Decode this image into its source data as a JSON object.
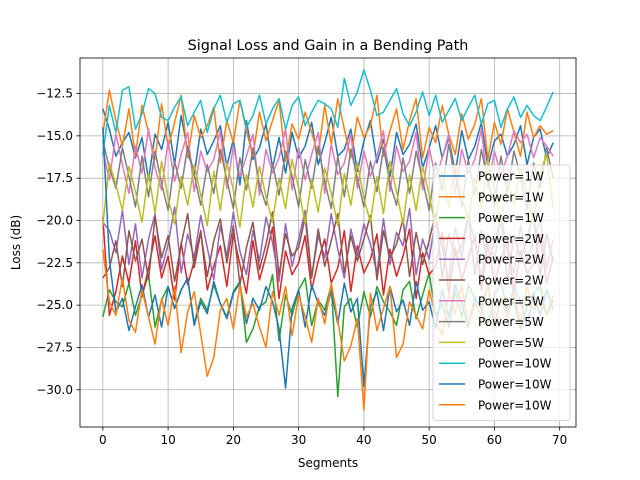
{
  "chart_data": {
    "type": "line",
    "title": "Signal Loss and Gain in a Bending Path",
    "xlabel": "Segments",
    "ylabel": "Loss (dB)",
    "xlim": [
      -3.5,
      72.5
    ],
    "ylim": [
      -32.2,
      -10.4
    ],
    "xticks": [
      0,
      10,
      20,
      30,
      40,
      50,
      60,
      70
    ],
    "yticks": [
      -30.0,
      -27.5,
      -25.0,
      -22.5,
      -20.0,
      -17.5,
      -15.0,
      -12.5
    ],
    "ytick_labels": [
      "−30.0",
      "−27.5",
      "−25.0",
      "−22.5",
      "−20.0",
      "−17.5",
      "−15.0",
      "−12.5"
    ],
    "grid": true,
    "legend_position": "center-right",
    "x": [
      0,
      1,
      2,
      3,
      4,
      5,
      6,
      7,
      8,
      9,
      10,
      11,
      12,
      13,
      14,
      15,
      16,
      17,
      18,
      19,
      20,
      21,
      22,
      23,
      24,
      25,
      26,
      27,
      28,
      29,
      30,
      31,
      32,
      33,
      34,
      35,
      36,
      37,
      38,
      39,
      40,
      41,
      42,
      43,
      44,
      45,
      46,
      47,
      48,
      49,
      50,
      51,
      52,
      53,
      54,
      55,
      56,
      57,
      58,
      59,
      60,
      61,
      62,
      63,
      64,
      65,
      66,
      67,
      68,
      69
    ],
    "series": [
      {
        "name": "Power=1W",
        "color": "#1f77b4",
        "values": [
          -13.4,
          -14.6,
          -16.2,
          -15.4,
          -14.8,
          -16.3,
          -15.1,
          -17.6,
          -14.9,
          -15.8,
          -14.2,
          -16.7,
          -13.8,
          -15.9,
          -17.3,
          -14.6,
          -16.1,
          -15.3,
          -14.4,
          -16.8,
          -15.2,
          -17.9,
          -14.1,
          -16.4,
          -15.7,
          -14.3,
          -16.9,
          -15.1,
          -17.2,
          -14.8,
          -16.3,
          -15.6,
          -14.2,
          -16.7,
          -15.4,
          -13.9,
          -16.2,
          -15.8,
          -14.6,
          -17.1,
          -15.3,
          -14.1,
          -16.6,
          -15.2,
          -17.4,
          -14.8,
          -16.1,
          -15.5,
          -14.3,
          -16.9,
          -15.7,
          -14.4,
          -16.3,
          -15.1,
          -17.2,
          -14.7,
          -16.4,
          -15.6,
          -14.2,
          -16.8,
          -15.3,
          -14.9,
          -16.2,
          -15.5,
          -14.4,
          -16.7,
          -15.1,
          -14.6,
          -16.3,
          -15.4
        ]
      },
      {
        "name": "Power=1W",
        "color": "#ff7f0e",
        "values": [
          -14.9,
          -12.3,
          -14.1,
          -15.6,
          -13.4,
          -16.2,
          -13.2,
          -14.8,
          -16.4,
          -13.1,
          -15.7,
          -14.2,
          -12.6,
          -16.3,
          -13.8,
          -15.1,
          -14.4,
          -13.3,
          -16.6,
          -14.1,
          -15.4,
          -12.9,
          -14.7,
          -16.2,
          -13.6,
          -15.3,
          -14.1,
          -12.9,
          -16.5,
          -14.3,
          -15.2,
          -13.6,
          -14.8,
          -16.1,
          -13.2,
          -15.5,
          -12.8,
          -14.6,
          -16.3,
          -13.9,
          -15.1,
          -14.4,
          -12.6,
          -16.2,
          -14.7,
          -13.4,
          -15.8,
          -14.1,
          -12.8,
          -16.3,
          -14.5,
          -15.4,
          -13.2,
          -14.9,
          -16.1,
          -13.7,
          -15.2,
          -14.3,
          -12.8,
          -16.4,
          -14.2,
          -15.5,
          -13.4,
          -14.8,
          -16.2,
          -13.6,
          -15.1,
          -14.4,
          -14.9,
          -14.7
        ]
      },
      {
        "name": "Power=1W",
        "color": "#2ca02c",
        "values": [
          -25.7,
          -24.1,
          -24.8,
          -25.1,
          -23.7,
          -25.6,
          -24.4,
          -23.2,
          -26.3,
          -24.7,
          -23.9,
          -25.2,
          -24.1,
          -23.4,
          -26.1,
          -24.6,
          -25.3,
          -23.8,
          -24.9,
          -25.7,
          -24.2,
          -23.6,
          -27.2,
          -26.4,
          -25.1,
          -24.8,
          -23.2,
          -27.1,
          -24.4,
          -25.6,
          -24.1,
          -23.4,
          -26.2,
          -24.7,
          -25.3,
          -23.8,
          -30.4,
          -25.1,
          -24.6,
          -26.3,
          -24.2,
          -25.7,
          -23.9,
          -24.8,
          -25.4,
          -26.2,
          -24.1,
          -23.6,
          -25.8,
          -24.4,
          -23.1,
          -25.6,
          -24.9,
          -26.3,
          -24.2,
          -25.7,
          -23.8,
          -24.6,
          -25.3,
          -26.1,
          -24.4,
          -23.7,
          -25.2,
          -24.8,
          -26.4,
          -25.1,
          -24.3,
          -23.9,
          -25.6,
          -24.7
        ]
      },
      {
        "name": "Power=2W",
        "color": "#d62728",
        "values": [
          -19.8,
          -25.6,
          -24.2,
          -22.1,
          -23.7,
          -21.2,
          -24.5,
          -22.8,
          -20.9,
          -23.4,
          -22.1,
          -24.7,
          -21.3,
          -23.8,
          -22.4,
          -20.6,
          -24.1,
          -22.7,
          -21.5,
          -23.9,
          -20.8,
          -22.6,
          -24.3,
          -21.2,
          -23.5,
          -22.1,
          -20.4,
          -24.6,
          -21.8,
          -23.2,
          -22.5,
          -20.9,
          -24.1,
          -22.4,
          -21.1,
          -23.7,
          -22.8,
          -20.6,
          -24.2,
          -21.5,
          -23.1,
          -22.3,
          -20.8,
          -24.4,
          -21.7,
          -23.3,
          -22.1,
          -20.5,
          -24.6,
          -21.9,
          -23.2,
          -22.7,
          -20.7,
          -24.3,
          -21.6,
          -23.5,
          -22.2,
          -20.9,
          -24.1,
          -21.4,
          -23.6,
          -22.3,
          -21.1,
          -24.2,
          -21.8,
          -23.1,
          -22.6,
          -20.8,
          -23.7,
          -22.1
        ]
      },
      {
        "name": "Power=2W",
        "color": "#9467bd",
        "values": [
          -20.1,
          -20.6,
          -21.9,
          -19.4,
          -22.6,
          -20.2,
          -23.4,
          -21.1,
          -19.6,
          -22.9,
          -21.4,
          -19.2,
          -23.1,
          -20.8,
          -22.2,
          -19.7,
          -21.6,
          -23.5,
          -20.3,
          -22.1,
          -19.5,
          -21.8,
          -23.2,
          -20.6,
          -22.4,
          -19.8,
          -21.3,
          -23.6,
          -20.2,
          -22.7,
          -21.1,
          -19.4,
          -23.3,
          -20.9,
          -22.2,
          -19.6,
          -21.7,
          -23.4,
          -20.5,
          -22.1,
          -20.2,
          -21.4,
          -23.1,
          -19.9,
          -22.6,
          -20.7,
          -21.5,
          -19.3,
          -23.2,
          -21.1,
          -22.3,
          -19.8,
          -21.6,
          -23.5,
          -20.4,
          -22.2,
          -19.7,
          -21.3,
          -23.4,
          -20.8,
          -22.5,
          -19.6,
          -21.9,
          -23.1,
          -20.3,
          -22.4,
          -21.2,
          -19.9,
          -22.8,
          -21.1
        ]
      },
      {
        "name": "Power=2W",
        "color": "#8c564b",
        "values": [
          -23.4,
          -22.8,
          -21.2,
          -23.9,
          -20.6,
          -22.4,
          -21.1,
          -23.5,
          -19.8,
          -22.2,
          -20.9,
          -23.6,
          -21.4,
          -19.6,
          -22.8,
          -20.7,
          -23.3,
          -21.2,
          -19.9,
          -22.5,
          -20.3,
          -23.8,
          -21.6,
          -20.1,
          -22.9,
          -21.4,
          -19.5,
          -23.2,
          -20.8,
          -22.1,
          -21.6,
          -19.8,
          -23.4,
          -20.5,
          -22.7,
          -21.2,
          -19.6,
          -23.1,
          -20.9,
          -22.4,
          -21.1,
          -19.7,
          -23.5,
          -20.6,
          -22.2,
          -21.4,
          -19.9,
          -23.3,
          -20.7,
          -22.6,
          -21.2,
          -19.5,
          -23.4,
          -20.8,
          -22.1,
          -21.5,
          -19.7,
          -23.2,
          -20.6,
          -22.5,
          -21.3,
          -19.8,
          -23.6,
          -20.9,
          -22.3,
          -21.1,
          -19.6,
          -23.3,
          -20.8,
          -22.4
        ]
      },
      {
        "name": "Power=5W",
        "color": "#e377c2",
        "values": [
          -15.9,
          -17.6,
          -14.9,
          -16.7,
          -18.4,
          -15.6,
          -17.2,
          -14.6,
          -16.9,
          -18.2,
          -15.3,
          -17.7,
          -16.1,
          -14.8,
          -18.3,
          -15.9,
          -17.1,
          -16.4,
          -14.7,
          -18.1,
          -15.6,
          -17.4,
          -16.2,
          -14.9,
          -18.5,
          -15.8,
          -17.2,
          -16.3,
          -14.6,
          -18.2,
          -15.7,
          -17.6,
          -16.1,
          -14.8,
          -18.4,
          -15.5,
          -17.3,
          -16.6,
          -14.9,
          -18.1,
          -15.9,
          -17.4,
          -16.2,
          -14.7,
          -18.3,
          -15.6,
          -17.1,
          -16.5,
          -14.8,
          -18.2,
          -15.7,
          -17.5,
          -16.3,
          -14.9,
          -18.4,
          -15.8,
          -17.2,
          -16.4,
          -14.6,
          -18.1,
          -15.9,
          -17.3,
          -16.2,
          -14.7,
          -15.4,
          -14.9,
          -16.3,
          -15.1,
          -15.6,
          -16.2
        ]
      },
      {
        "name": "Power=5W",
        "color": "#7f7f7f",
        "values": [
          -15.3,
          -16.9,
          -18.1,
          -15.7,
          -17.4,
          -19.2,
          -16.2,
          -18.6,
          -15.9,
          -17.8,
          -19.4,
          -16.5,
          -18.1,
          -15.6,
          -17.3,
          -19.1,
          -16.7,
          -18.4,
          -15.8,
          -17.6,
          -19.3,
          -16.3,
          -18.2,
          -15.7,
          -17.9,
          -19.1,
          -16.6,
          -18.5,
          -15.9,
          -17.4,
          -19.2,
          -16.4,
          -18.1,
          -15.6,
          -17.7,
          -19.3,
          -16.2,
          -18.6,
          -15.8,
          -17.5,
          -19.2,
          -16.5,
          -18.3,
          -15.7,
          -17.8,
          -19.1,
          -16.3,
          -18.4,
          -15.9,
          -17.6,
          -19.4,
          -16.6,
          -18.2,
          -15.5,
          -17.3,
          -19.2,
          -16.4,
          -18.5,
          -15.8,
          -17.7,
          -19.1,
          -16.2,
          -18.3,
          -15.9,
          -17.4,
          -19.3,
          -16.6,
          -18.1,
          -15.7,
          -17.5
        ]
      },
      {
        "name": "Power=5W",
        "color": "#bcbd22",
        "values": [
          -20.3,
          -16.6,
          -17.9,
          -19.4,
          -16.8,
          -18.3,
          -20.1,
          -17.2,
          -19.6,
          -16.5,
          -18.7,
          -20.2,
          -17.4,
          -19.1,
          -16.7,
          -18.5,
          -20.3,
          -17.1,
          -19.4,
          -16.6,
          -18.2,
          -20.4,
          -17.3,
          -19.2,
          -16.8,
          -18.6,
          -20.1,
          -17.5,
          -19.3,
          -16.4,
          -18.1,
          -20.2,
          -17.6,
          -19.5,
          -16.9,
          -18.4,
          -20.3,
          -17.2,
          -19.1,
          -16.6,
          -18.7,
          -20.1,
          -17.4,
          -19.6,
          -16.5,
          -18.3,
          -20.2,
          -17.3,
          -19.4,
          -16.8,
          -18.5,
          -20.4,
          -17.1,
          -19.2,
          -16.7,
          -18.6,
          -20.1,
          -17.5,
          -19.3,
          -16.4,
          -18.2,
          -20.3,
          -17.6,
          -19.1,
          -16.9,
          -18.4,
          -20.2,
          -17.2,
          -16.1,
          -19.3
        ]
      },
      {
        "name": "Power=10W",
        "color": "#17becf",
        "values": [
          -16.1,
          -13.2,
          -14.8,
          -12.3,
          -12.1,
          -14.6,
          -13.7,
          -12.2,
          -12.5,
          -13.9,
          -14.1,
          -13.3,
          -12.7,
          -14.4,
          -13.6,
          -12.9,
          -14.8,
          -13.4,
          -12.6,
          -14.2,
          -13.1,
          -12.9,
          -14.5,
          -13.8,
          -12.6,
          -14.3,
          -13.4,
          -12.8,
          -14.6,
          -13.2,
          -12.7,
          -14.4,
          -13.6,
          -12.9,
          -13.1,
          -13.4,
          -14.5,
          -11.6,
          -13.2,
          -12.4,
          -11.1,
          -12.3,
          -13.8,
          -13.6,
          -12.9,
          -12.2,
          -13.7,
          -14.4,
          -13.6,
          -12.4,
          -13.8,
          -12.6,
          -14.2,
          -13.5,
          -12.8,
          -14.1,
          -13.3,
          -12.6,
          -14.3,
          -13.1,
          -12.9,
          -14.5,
          -13.4,
          -12.7,
          -13.9,
          -13.2,
          -13.8,
          -14.1,
          -13.3,
          -12.4
        ]
      },
      {
        "name": "Power=10W",
        "color": "#1f77b4",
        "values": [
          -14.5,
          -22.3,
          -25.4,
          -24.6,
          -26.5,
          -25.1,
          -23.8,
          -25.7,
          -24.4,
          -26.3,
          -23.9,
          -25.2,
          -24.1,
          -23.4,
          -26.2,
          -24.8,
          -25.5,
          -23.6,
          -24.9,
          -25.8,
          -24.3,
          -23.7,
          -26.1,
          -24.6,
          -25.3,
          -23.9,
          -24.8,
          -26.4,
          -29.9,
          -25.2,
          -24.1,
          -26.3,
          -23.8,
          -24.9,
          -25.6,
          -24.2,
          -26.1,
          -23.7,
          -25.4,
          -24.6,
          -29.8,
          -25.1,
          -24.2,
          -26.5,
          -23.9,
          -25.4,
          -24.7,
          -26.2,
          -23.6,
          -25.3,
          -24.8,
          -26.4,
          -24.1,
          -25.7,
          -23.8,
          -24.9,
          -26.3,
          -24.5,
          -25.2,
          -23.7,
          -26.1,
          -24.6,
          -25.4,
          -23.9,
          -24.8,
          -26.2,
          -24.3,
          -25.6,
          -24.1,
          -25.3
        ]
      },
      {
        "name": "Power=10W",
        "color": "#ff7f0e",
        "values": [
          -21.7,
          -24.8,
          -25.6,
          -23.4,
          -25.9,
          -26.6,
          -24.1,
          -25.7,
          -27.3,
          -24.6,
          -26.2,
          -23.9,
          -27.8,
          -25.4,
          -24.2,
          -26.7,
          -29.2,
          -28.1,
          -25.3,
          -24.6,
          -26.4,
          -23.8,
          -25.7,
          -24.9,
          -26.3,
          -27.5,
          -24.2,
          -25.6,
          -23.9,
          -26.8,
          -24.4,
          -25.7,
          -27.2,
          -24.6,
          -26.1,
          -23.7,
          -25.9,
          -28.3,
          -27.4,
          -25.8,
          -31.2,
          -24.3,
          -26.5,
          -25.2,
          -23.9,
          -28.1,
          -27.3,
          -24.8,
          -25.6,
          -26.4,
          -24.1,
          -25.7,
          -26.8,
          -24.3,
          -25.5,
          -23.8,
          -26.2,
          -24.9,
          -25.6,
          -23.7,
          -26.4,
          -24.5,
          -25.8,
          -24.2,
          -26.1,
          -23.9,
          -25.3,
          -24.7,
          -25.6,
          -24.4
        ]
      }
    ]
  }
}
